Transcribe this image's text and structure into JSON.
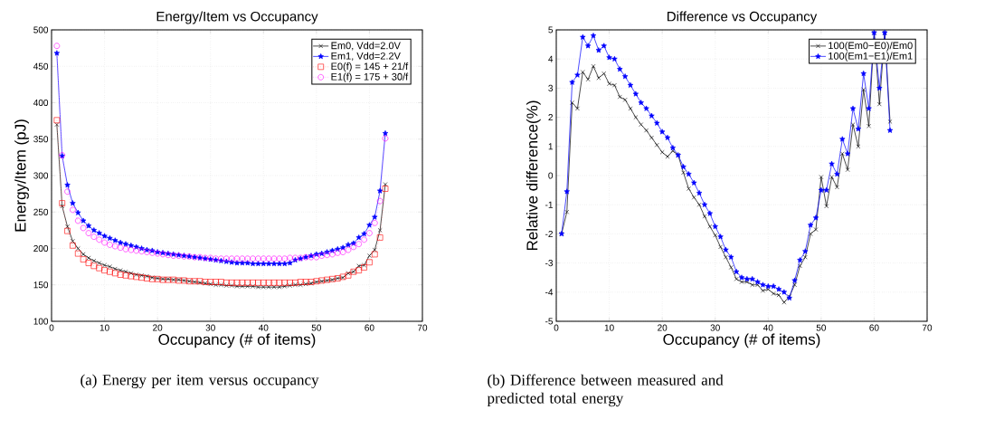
{
  "chart_data": [
    {
      "type": "line",
      "title": "Energy/Item vs Occupancy",
      "xlabel": "Occupancy (# of items)",
      "ylabel": "Energy/Item (pJ)",
      "x": [
        1,
        2,
        3,
        4,
        5,
        6,
        7,
        8,
        9,
        10,
        11,
        12,
        13,
        14,
        15,
        16,
        17,
        18,
        19,
        20,
        21,
        22,
        23,
        24,
        25,
        26,
        27,
        28,
        29,
        30,
        31,
        32,
        33,
        34,
        35,
        36,
        37,
        38,
        39,
        40,
        41,
        42,
        43,
        44,
        45,
        46,
        47,
        48,
        49,
        50,
        51,
        52,
        53,
        54,
        55,
        56,
        57,
        58,
        59,
        60,
        61,
        62,
        63
      ],
      "series": [
        {
          "name": "Em0, Vdd=2.0V",
          "color": "#000000",
          "marker": "cross",
          "line_style": "solid",
          "values": [
            370,
            258,
            230,
            210,
            200,
            192,
            187,
            183,
            180,
            177,
            175,
            172,
            170,
            168,
            166,
            164,
            163,
            162,
            160,
            159,
            158,
            158,
            157,
            157,
            156,
            155,
            154,
            153,
            152,
            151,
            150,
            150,
            149,
            149,
            148,
            148,
            148,
            148,
            147,
            147,
            147,
            147,
            147,
            148,
            149,
            150,
            150,
            151,
            152,
            154,
            155,
            156,
            157,
            159,
            160,
            166,
            168,
            176,
            177,
            190,
            198,
            225,
            288
          ]
        },
        {
          "name": "Em1, Vdd=2.2V",
          "color": "#0000ff",
          "marker": "star",
          "line_style": "solid",
          "values": [
            468,
            327,
            287,
            262,
            249,
            238,
            231,
            225,
            221,
            217,
            214,
            211,
            208,
            206,
            204,
            202,
            200,
            198,
            197,
            195,
            194,
            193,
            192,
            191,
            190,
            189,
            188,
            187,
            186,
            185,
            184,
            183,
            182,
            181,
            180,
            180,
            180,
            179,
            179,
            179,
            179,
            179,
            179,
            179,
            180,
            184,
            186,
            188,
            190,
            192,
            193,
            195,
            197,
            199,
            201,
            205,
            207,
            215,
            220,
            232,
            243,
            279,
            358
          ]
        },
        {
          "name": "E0(f) = 145 + 21/f",
          "color": "#ff0000",
          "marker": "square",
          "line_style": "dotted",
          "values": [
            376,
            262,
            224,
            204,
            193,
            185,
            180,
            176,
            173,
            170,
            168,
            166,
            164,
            163,
            162,
            161,
            160,
            159,
            158,
            158,
            157,
            157,
            157,
            156,
            156,
            155,
            155,
            155,
            154,
            154,
            154,
            154,
            153,
            153,
            153,
            153,
            153,
            153,
            153,
            153,
            153,
            153,
            153,
            153,
            153,
            153,
            154,
            154,
            154,
            155,
            156,
            157,
            158,
            159,
            161,
            163,
            168,
            170,
            174,
            181,
            192,
            215,
            282
          ]
        },
        {
          "name": "E1(f) = 175 + 30/f",
          "color": "#ff00ff",
          "marker": "circle",
          "line_style": "dotted",
          "values": [
            478,
            328,
            278,
            253,
            238,
            228,
            221,
            216,
            212,
            208,
            205,
            203,
            201,
            199,
            198,
            197,
            196,
            195,
            194,
            193,
            192,
            191,
            190,
            190,
            189,
            189,
            188,
            188,
            187,
            187,
            186,
            186,
            186,
            186,
            186,
            186,
            186,
            186,
            186,
            186,
            186,
            186,
            186,
            186,
            187,
            187,
            187,
            188,
            188,
            188,
            190,
            191,
            192,
            194,
            195,
            198,
            202,
            206,
            212,
            221,
            235,
            265,
            351
          ]
        }
      ],
      "xlim": [
        0,
        70
      ],
      "ylim": [
        100,
        500
      ],
      "xticks": [
        0,
        10,
        20,
        30,
        40,
        50,
        60,
        70
      ],
      "yticks": [
        100,
        150,
        200,
        250,
        300,
        350,
        400,
        450,
        500
      ],
      "grid": true,
      "legend": "top right",
      "annotations": [
        "(a)  Energy per item versus occupancy"
      ]
    },
    {
      "type": "line",
      "title": "Difference vs Occupancy",
      "xlabel": "Occupancy (# of items)",
      "ylabel": "Relative difference(%)",
      "x": [
        1,
        2,
        3,
        4,
        5,
        6,
        7,
        8,
        9,
        10,
        11,
        12,
        13,
        14,
        15,
        16,
        17,
        18,
        19,
        20,
        21,
        22,
        23,
        24,
        25,
        26,
        27,
        28,
        29,
        30,
        31,
        32,
        33,
        34,
        35,
        36,
        37,
        38,
        39,
        40,
        41,
        42,
        43,
        44,
        45,
        46,
        47,
        48,
        49,
        50,
        51,
        52,
        53,
        54,
        55,
        56,
        57,
        58,
        59,
        60,
        61,
        62,
        63
      ],
      "series": [
        {
          "name": "100(Em0−E0)/Em0",
          "color": "#000000",
          "marker": "cross",
          "line_style": "solid",
          "values": [
            -2.0,
            -1.25,
            2.5,
            2.3,
            3.55,
            3.3,
            3.75,
            3.35,
            3.5,
            3.15,
            3.1,
            2.7,
            2.6,
            2.3,
            2.0,
            1.75,
            1.55,
            1.3,
            1.05,
            0.8,
            0.65,
            0.85,
            0.7,
            0.1,
            -0.45,
            -0.75,
            -1.0,
            -1.4,
            -1.75,
            -2.05,
            -2.45,
            -2.8,
            -3.15,
            -3.55,
            -3.65,
            -3.65,
            -3.75,
            -3.75,
            -3.95,
            -3.9,
            -4.05,
            -4.1,
            -4.35,
            -4.15,
            -3.75,
            -3.1,
            -2.8,
            -2.0,
            -1.85,
            -0.05,
            -1.05,
            -0.05,
            -0.4,
            0.75,
            0.2,
            1.75,
            1.0,
            2.95,
            1.7,
            4.9,
            2.45,
            4.9,
            1.85
          ]
        },
        {
          "name": "100(Em1−E1)/Em1",
          "color": "#0000ff",
          "marker": "star",
          "line_style": "solid",
          "values": [
            -2.0,
            -0.55,
            3.2,
            3.45,
            4.75,
            4.45,
            4.8,
            4.3,
            4.45,
            4.05,
            4.0,
            3.65,
            3.4,
            3.1,
            2.8,
            2.5,
            2.3,
            2.05,
            1.8,
            1.5,
            1.3,
            0.95,
            0.7,
            0.3,
            0.05,
            -0.25,
            -0.6,
            -1.0,
            -1.3,
            -1.75,
            -2.1,
            -2.55,
            -2.8,
            -3.3,
            -3.5,
            -3.55,
            -3.55,
            -3.65,
            -3.75,
            -3.8,
            -3.8,
            -3.9,
            -4.0,
            -4.2,
            -3.6,
            -2.9,
            -2.6,
            -1.7,
            -1.45,
            -0.5,
            -0.5,
            0.4,
            0.05,
            1.25,
            0.75,
            2.3,
            1.6,
            3.5,
            2.3,
            4.9,
            3.0,
            4.9,
            1.55
          ]
        }
      ],
      "xlim": [
        0,
        70
      ],
      "ylim": [
        -5,
        5
      ],
      "xticks": [
        0,
        10,
        20,
        30,
        40,
        50,
        60,
        70
      ],
      "yticks": [
        -5,
        -4,
        -3,
        -2,
        -1,
        0,
        1,
        2,
        3,
        4,
        5
      ],
      "grid": true,
      "legend": "top right",
      "annotations": [
        "(b)  Difference between measured and predicted total energy"
      ]
    }
  ]
}
